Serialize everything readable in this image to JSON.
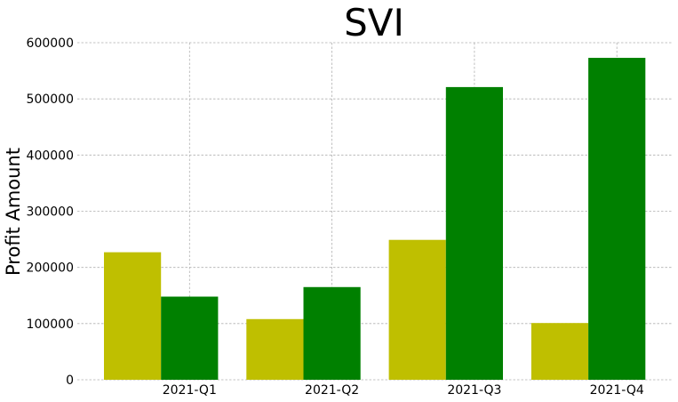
{
  "chart_data": {
    "type": "bar",
    "title": "SVI",
    "xlabel": "",
    "ylabel": "Profit Amount",
    "categories": [
      "2021-Q1",
      "2021-Q2",
      "2021-Q3",
      "2021-Q4"
    ],
    "series": [
      {
        "color": "#bfbf00",
        "values": [
          227000,
          108000,
          249000,
          101000
        ]
      },
      {
        "color": "#008000",
        "values": [
          148000,
          165000,
          521000,
          573000
        ]
      }
    ],
    "ylim": [
      0,
      600000
    ],
    "yticks": [
      0,
      100000,
      200000,
      300000,
      400000,
      500000,
      600000
    ],
    "ytick_labels": [
      "0",
      "100000",
      "200000",
      "300000",
      "400000",
      "500000",
      "600000"
    ],
    "grid": true,
    "legend": false
  }
}
